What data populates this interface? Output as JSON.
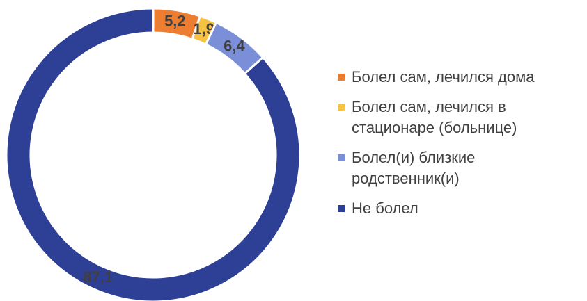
{
  "chart_data": {
    "type": "donut",
    "categories": [
      "Болел сам, лечился дома",
      "Болел сам, лечился в стационаре (больнице)",
      "Болел(и) близкие родственник(и)",
      "Не болел"
    ],
    "values": [
      5.2,
      1.9,
      6.4,
      87.1
    ],
    "value_labels": [
      "5,2",
      "1,9",
      "6,4",
      "87,1"
    ],
    "colors": [
      "#ed7d31",
      "#f5c243",
      "#7b8fd8",
      "#2e3f96"
    ],
    "legend": "right"
  }
}
